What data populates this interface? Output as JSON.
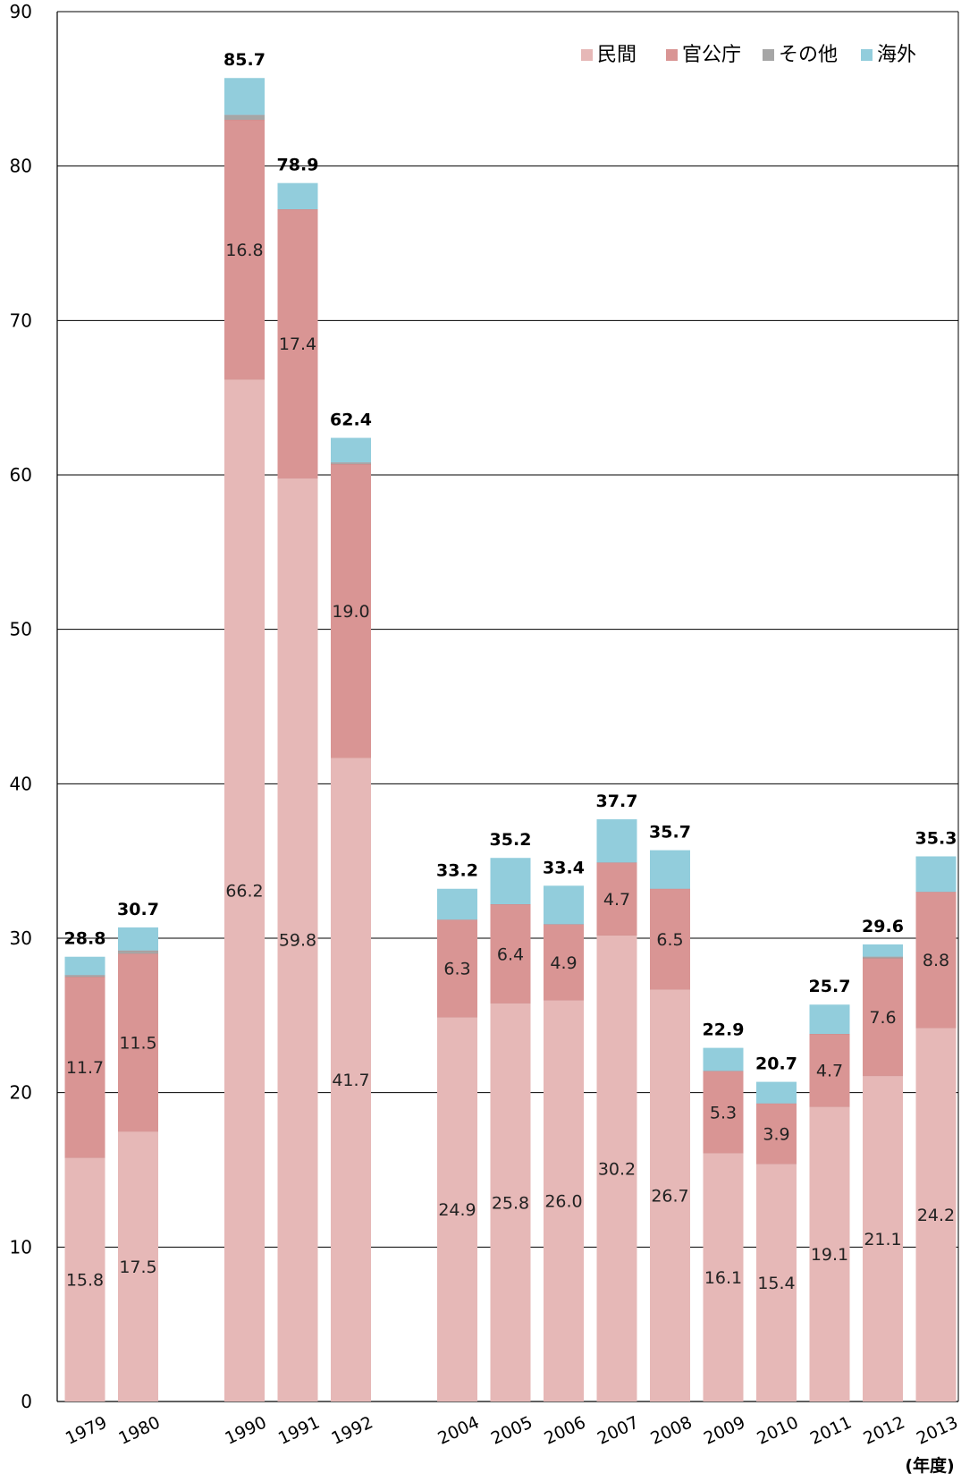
{
  "chart_data": {
    "type": "bar",
    "stacked": true,
    "title": "",
    "xlabel": "",
    "ylabel": "",
    "x_unit": "(年度)",
    "ylim": [
      0,
      90
    ],
    "yticks": [
      0,
      10,
      20,
      30,
      40,
      50,
      60,
      70,
      80,
      90
    ],
    "grid": true,
    "legend": "top-right",
    "categories": [
      "1979",
      "1980",
      "1990",
      "1991",
      "1992",
      "2004",
      "2005",
      "2006",
      "2007",
      "2008",
      "2009",
      "2010",
      "2011",
      "2012",
      "2013"
    ],
    "series": [
      {
        "name": "民間",
        "color": "#e6b8b7",
        "values": [
          15.8,
          17.5,
          66.2,
          59.8,
          41.7,
          24.9,
          25.8,
          26.0,
          30.2,
          26.7,
          16.1,
          15.4,
          19.1,
          21.1,
          24.2
        ]
      },
      {
        "name": "官公庁",
        "color": "#d99594",
        "values": [
          11.7,
          11.5,
          16.8,
          17.4,
          19.0,
          6.3,
          6.4,
          4.9,
          4.7,
          6.5,
          5.3,
          3.9,
          4.7,
          7.6,
          8.8
        ]
      },
      {
        "name": "その他",
        "color": "#a6a6a6",
        "values": [
          0.1,
          0.2,
          0.3,
          0.0,
          0.1,
          0.0,
          0.0,
          0.0,
          0.0,
          0.0,
          0.0,
          0.0,
          0.0,
          0.1,
          0.0
        ]
      },
      {
        "name": "海外",
        "color": "#92cddc",
        "values": [
          1.2,
          1.5,
          2.4,
          1.7,
          1.6,
          2.0,
          3.0,
          2.5,
          2.8,
          2.5,
          1.5,
          1.4,
          1.9,
          0.8,
          2.3
        ]
      }
    ],
    "segment_labels": {
      "民間": [
        "15.8",
        "17.5",
        "66.2",
        "59.8",
        "41.7",
        "24.9",
        "25.8",
        "26.0",
        "30.2",
        "26.7",
        "16.1",
        "15.4",
        "19.1",
        "21.1",
        "24.2"
      ],
      "官公庁": [
        "11.7",
        "11.5",
        "16.8",
        "17.4",
        "19.0",
        "6.3",
        "6.4",
        "4.9",
        "4.7",
        "6.5",
        "5.3",
        "3.9",
        "4.7",
        "7.6",
        "8.8"
      ]
    },
    "totals": [
      "28.8",
      "30.7",
      "85.7",
      "78.9",
      "62.4",
      "33.2",
      "35.2",
      "33.4",
      "37.7",
      "35.7",
      "22.9",
      "20.7",
      "25.7",
      "29.6",
      "35.3"
    ]
  }
}
